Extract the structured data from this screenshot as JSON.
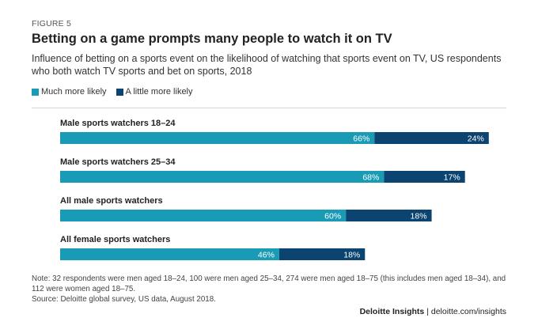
{
  "figure_label": "FIGURE 5",
  "title": "Betting on a game prompts many people to watch it on TV",
  "subtitle": "Influence of betting on a sports event on the likelihood of watching that sports event on TV, US respondents who both watch TV sports and bet on sports, 2018",
  "legend": [
    {
      "label": "Much more likely",
      "color": "#1a9bb5"
    },
    {
      "label": "A little more likely",
      "color": "#0b4470"
    }
  ],
  "chart_data": {
    "type": "bar",
    "orientation": "horizontal",
    "stacked": true,
    "title": "Betting on a game prompts many people to watch it on TV",
    "categories": [
      "Male sports watchers 18–24",
      "Male sports watchers 25–34",
      "All male sports watchers",
      "All female sports watchers"
    ],
    "series": [
      {
        "name": "Much more likely",
        "color": "#1a9bb5",
        "values": [
          66,
          68,
          60,
          46
        ],
        "labels": [
          "66%",
          "68%",
          "60%",
          "46%"
        ]
      },
      {
        "name": "A little more likely",
        "color": "#0b4470",
        "values": [
          24,
          17,
          18,
          18
        ],
        "labels": [
          "24%",
          "17%",
          "18%",
          "18%"
        ]
      }
    ],
    "xlim": [
      0,
      100
    ],
    "unit": "%"
  },
  "note_text": "Note: 32 respondents were men aged 18–24, 100 were men aged 25–34, 274 were men aged 18–75 (this includes men aged 18–34), and 112 were women aged 18–75.",
  "source_text": "Source: Deloitte global survey, US data, August 2018.",
  "footer": {
    "brand": "Deloitte Insights",
    "separator": "|",
    "url": "deloitte.com/insights"
  }
}
